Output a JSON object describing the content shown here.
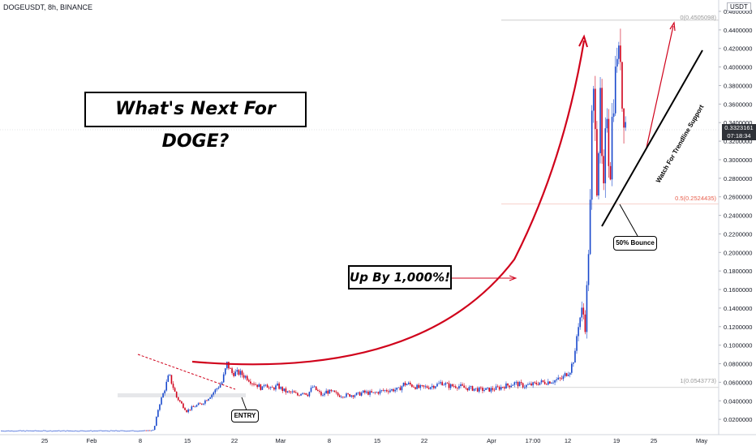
{
  "header": {
    "symbol": "DOGEUSDT, 8h, BINANCE",
    "currency_button": "USDT"
  },
  "annotations": {
    "title": "What's Next For DOGE?",
    "up_label": "Up By 1,000%!",
    "entry_label": "ENTRY",
    "bounce_label": "50% Bounce",
    "trendline_label": "Watch For Trendline Support"
  },
  "fib": {
    "level0": "0(0.4505098)",
    "level05": "0.5(0.2524435)",
    "level1": "1(0.0543773)"
  },
  "last_price": {
    "value": "0.3323161",
    "countdown": "07:18:34"
  },
  "colors": {
    "up": "#1848cc",
    "down": "#d0021b",
    "accent_red": "#d0021b",
    "flat": "#5577dd"
  },
  "chart_data": {
    "type": "candlestick",
    "x_ticks": [
      "25",
      "Feb",
      "8",
      "15",
      "22",
      "Mar",
      "8",
      "15",
      "22",
      "Apr",
      "17:00",
      "12",
      "19",
      "25",
      "May"
    ],
    "y_ticks": [
      "0.4600000",
      "0.4400000",
      "0.4200000",
      "0.4000000",
      "0.3800000",
      "0.3600000",
      "0.3400000",
      "0.3200000",
      "0.3000000",
      "0.2800000",
      "0.2600000",
      "0.2400000",
      "0.2200000",
      "0.2000000",
      "0.1800000",
      "0.1600000",
      "0.1400000",
      "0.1200000",
      "0.1000000",
      "0.0800000",
      "0.0600000",
      "0.0400000",
      "0.0200000"
    ],
    "ylim": [
      0.0,
      0.46
    ],
    "last_price": 0.3323161,
    "fib_levels": [
      0.4505098,
      0.2524435,
      0.0543773
    ],
    "close_path": [
      [
        0.0,
        0.0075
      ],
      [
        28.0,
        0.0075
      ],
      [
        30.5,
        0.0085
      ],
      [
        31.5,
        0.035
      ],
      [
        32.5,
        0.05
      ],
      [
        33.5,
        0.068
      ],
      [
        35.0,
        0.044
      ],
      [
        37.0,
        0.029
      ],
      [
        38.5,
        0.034
      ],
      [
        40.0,
        0.037
      ],
      [
        42.0,
        0.047
      ],
      [
        44.0,
        0.06
      ],
      [
        45.0,
        0.08
      ],
      [
        46.0,
        0.07
      ],
      [
        47.5,
        0.07
      ],
      [
        49.0,
        0.065
      ],
      [
        50.0,
        0.06
      ],
      [
        51.0,
        0.057
      ],
      [
        52.0,
        0.053
      ],
      [
        52.5,
        0.061
      ],
      [
        53.5,
        0.052
      ],
      [
        55.0,
        0.056
      ],
      [
        56.0,
        0.052
      ],
      [
        57.0,
        0.049
      ],
      [
        58.0,
        0.049
      ],
      [
        59.0,
        0.046
      ],
      [
        60.0,
        0.05
      ],
      [
        61.0,
        0.047
      ],
      [
        62.0,
        0.055
      ],
      [
        63.0,
        0.05
      ],
      [
        64.0,
        0.045
      ],
      [
        64.5,
        0.05
      ],
      [
        66.0,
        0.049
      ],
      [
        67.0,
        0.046
      ],
      [
        69.0,
        0.046
      ],
      [
        71.0,
        0.047
      ],
      [
        72.0,
        0.049
      ],
      [
        74.0,
        0.048
      ],
      [
        76.0,
        0.051
      ],
      [
        78.0,
        0.052
      ],
      [
        79.0,
        0.052
      ],
      [
        80.0,
        0.058
      ],
      [
        81.0,
        0.058
      ],
      [
        83.0,
        0.054
      ],
      [
        85.0,
        0.055
      ],
      [
        87.0,
        0.058
      ],
      [
        87.5,
        0.06
      ],
      [
        89.0,
        0.056
      ],
      [
        91.0,
        0.056
      ],
      [
        92.0,
        0.054
      ],
      [
        94.0,
        0.053
      ],
      [
        95.0,
        0.052
      ],
      [
        97.0,
        0.052
      ],
      [
        99.0,
        0.054
      ],
      [
        100.0,
        0.056
      ],
      [
        101.0,
        0.057
      ],
      [
        102.0,
        0.059
      ],
      [
        104.0,
        0.056
      ],
      [
        106.0,
        0.058
      ],
      [
        107.0,
        0.06
      ],
      [
        108.0,
        0.06
      ],
      [
        110.0,
        0.062
      ],
      [
        111.5,
        0.064
      ],
      [
        112.0,
        0.068
      ],
      [
        113.0,
        0.073
      ],
      [
        114.0,
        0.09
      ],
      [
        114.5,
        0.12
      ],
      [
        115.0,
        0.13
      ],
      [
        115.5,
        0.14
      ],
      [
        116.0,
        0.12
      ],
      [
        116.5,
        0.18
      ],
      [
        117.0,
        0.25
      ],
      [
        117.3,
        0.34
      ],
      [
        117.7,
        0.37
      ],
      [
        118.0,
        0.35
      ],
      [
        118.3,
        0.27
      ],
      [
        118.7,
        0.32
      ],
      [
        119.0,
        0.36
      ],
      [
        119.3,
        0.3
      ],
      [
        119.7,
        0.26
      ],
      [
        120.0,
        0.32
      ],
      [
        120.3,
        0.36
      ],
      [
        120.7,
        0.3
      ],
      [
        121.0,
        0.29
      ],
      [
        121.3,
        0.34
      ],
      [
        121.7,
        0.37
      ],
      [
        122.0,
        0.39
      ],
      [
        122.3,
        0.42
      ],
      [
        122.7,
        0.405
      ],
      [
        123.0,
        0.42
      ],
      [
        123.3,
        0.36
      ],
      [
        123.7,
        0.35
      ],
      [
        124.0,
        0.34
      ],
      [
        124.3,
        0.33
      ]
    ]
  }
}
